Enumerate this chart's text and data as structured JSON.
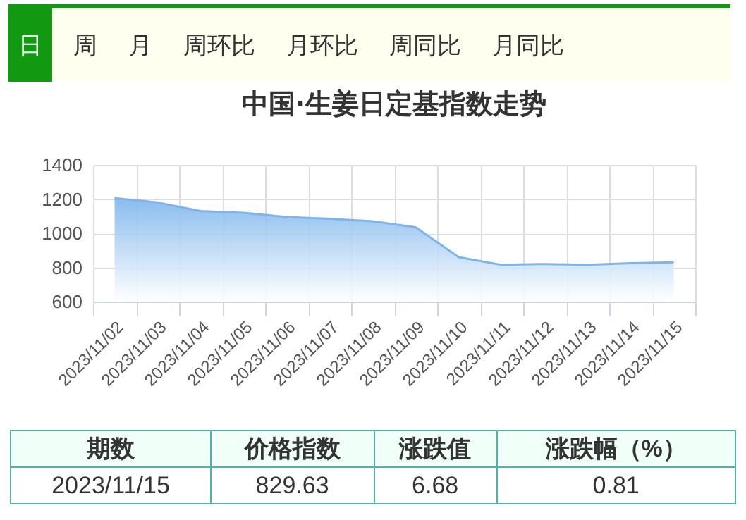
{
  "chart_data": {
    "type": "area",
    "title": "中国·生姜日定基指数走势",
    "categories": [
      "2023/11/02",
      "2023/11/03",
      "2023/11/04",
      "2023/11/05",
      "2023/11/06",
      "2023/11/07",
      "2023/11/08",
      "2023/11/09",
      "2023/11/10",
      "2023/11/11",
      "2023/11/12",
      "2023/11/13",
      "2023/11/14",
      "2023/11/15"
    ],
    "series": [
      {
        "color": "#7cb5ec",
        "values": [
          1205,
          1180,
          1130,
          1120,
          1095,
          1085,
          1070,
          1035,
          860,
          815,
          820,
          815,
          825,
          830
        ]
      }
    ],
    "ylim": [
      600,
      1400
    ],
    "yticks": [
      600,
      800,
      1000,
      1200,
      1400
    ],
    "grid": true,
    "annotations": [
      "日",
      "周",
      "月",
      "周环比",
      "月环比",
      "周同比",
      "月同比",
      "期数",
      "价格指数",
      "涨跌值",
      "涨跌幅（%）",
      "2023/11/15",
      "829.63",
      "6.68",
      "0.81"
    ]
  }
}
